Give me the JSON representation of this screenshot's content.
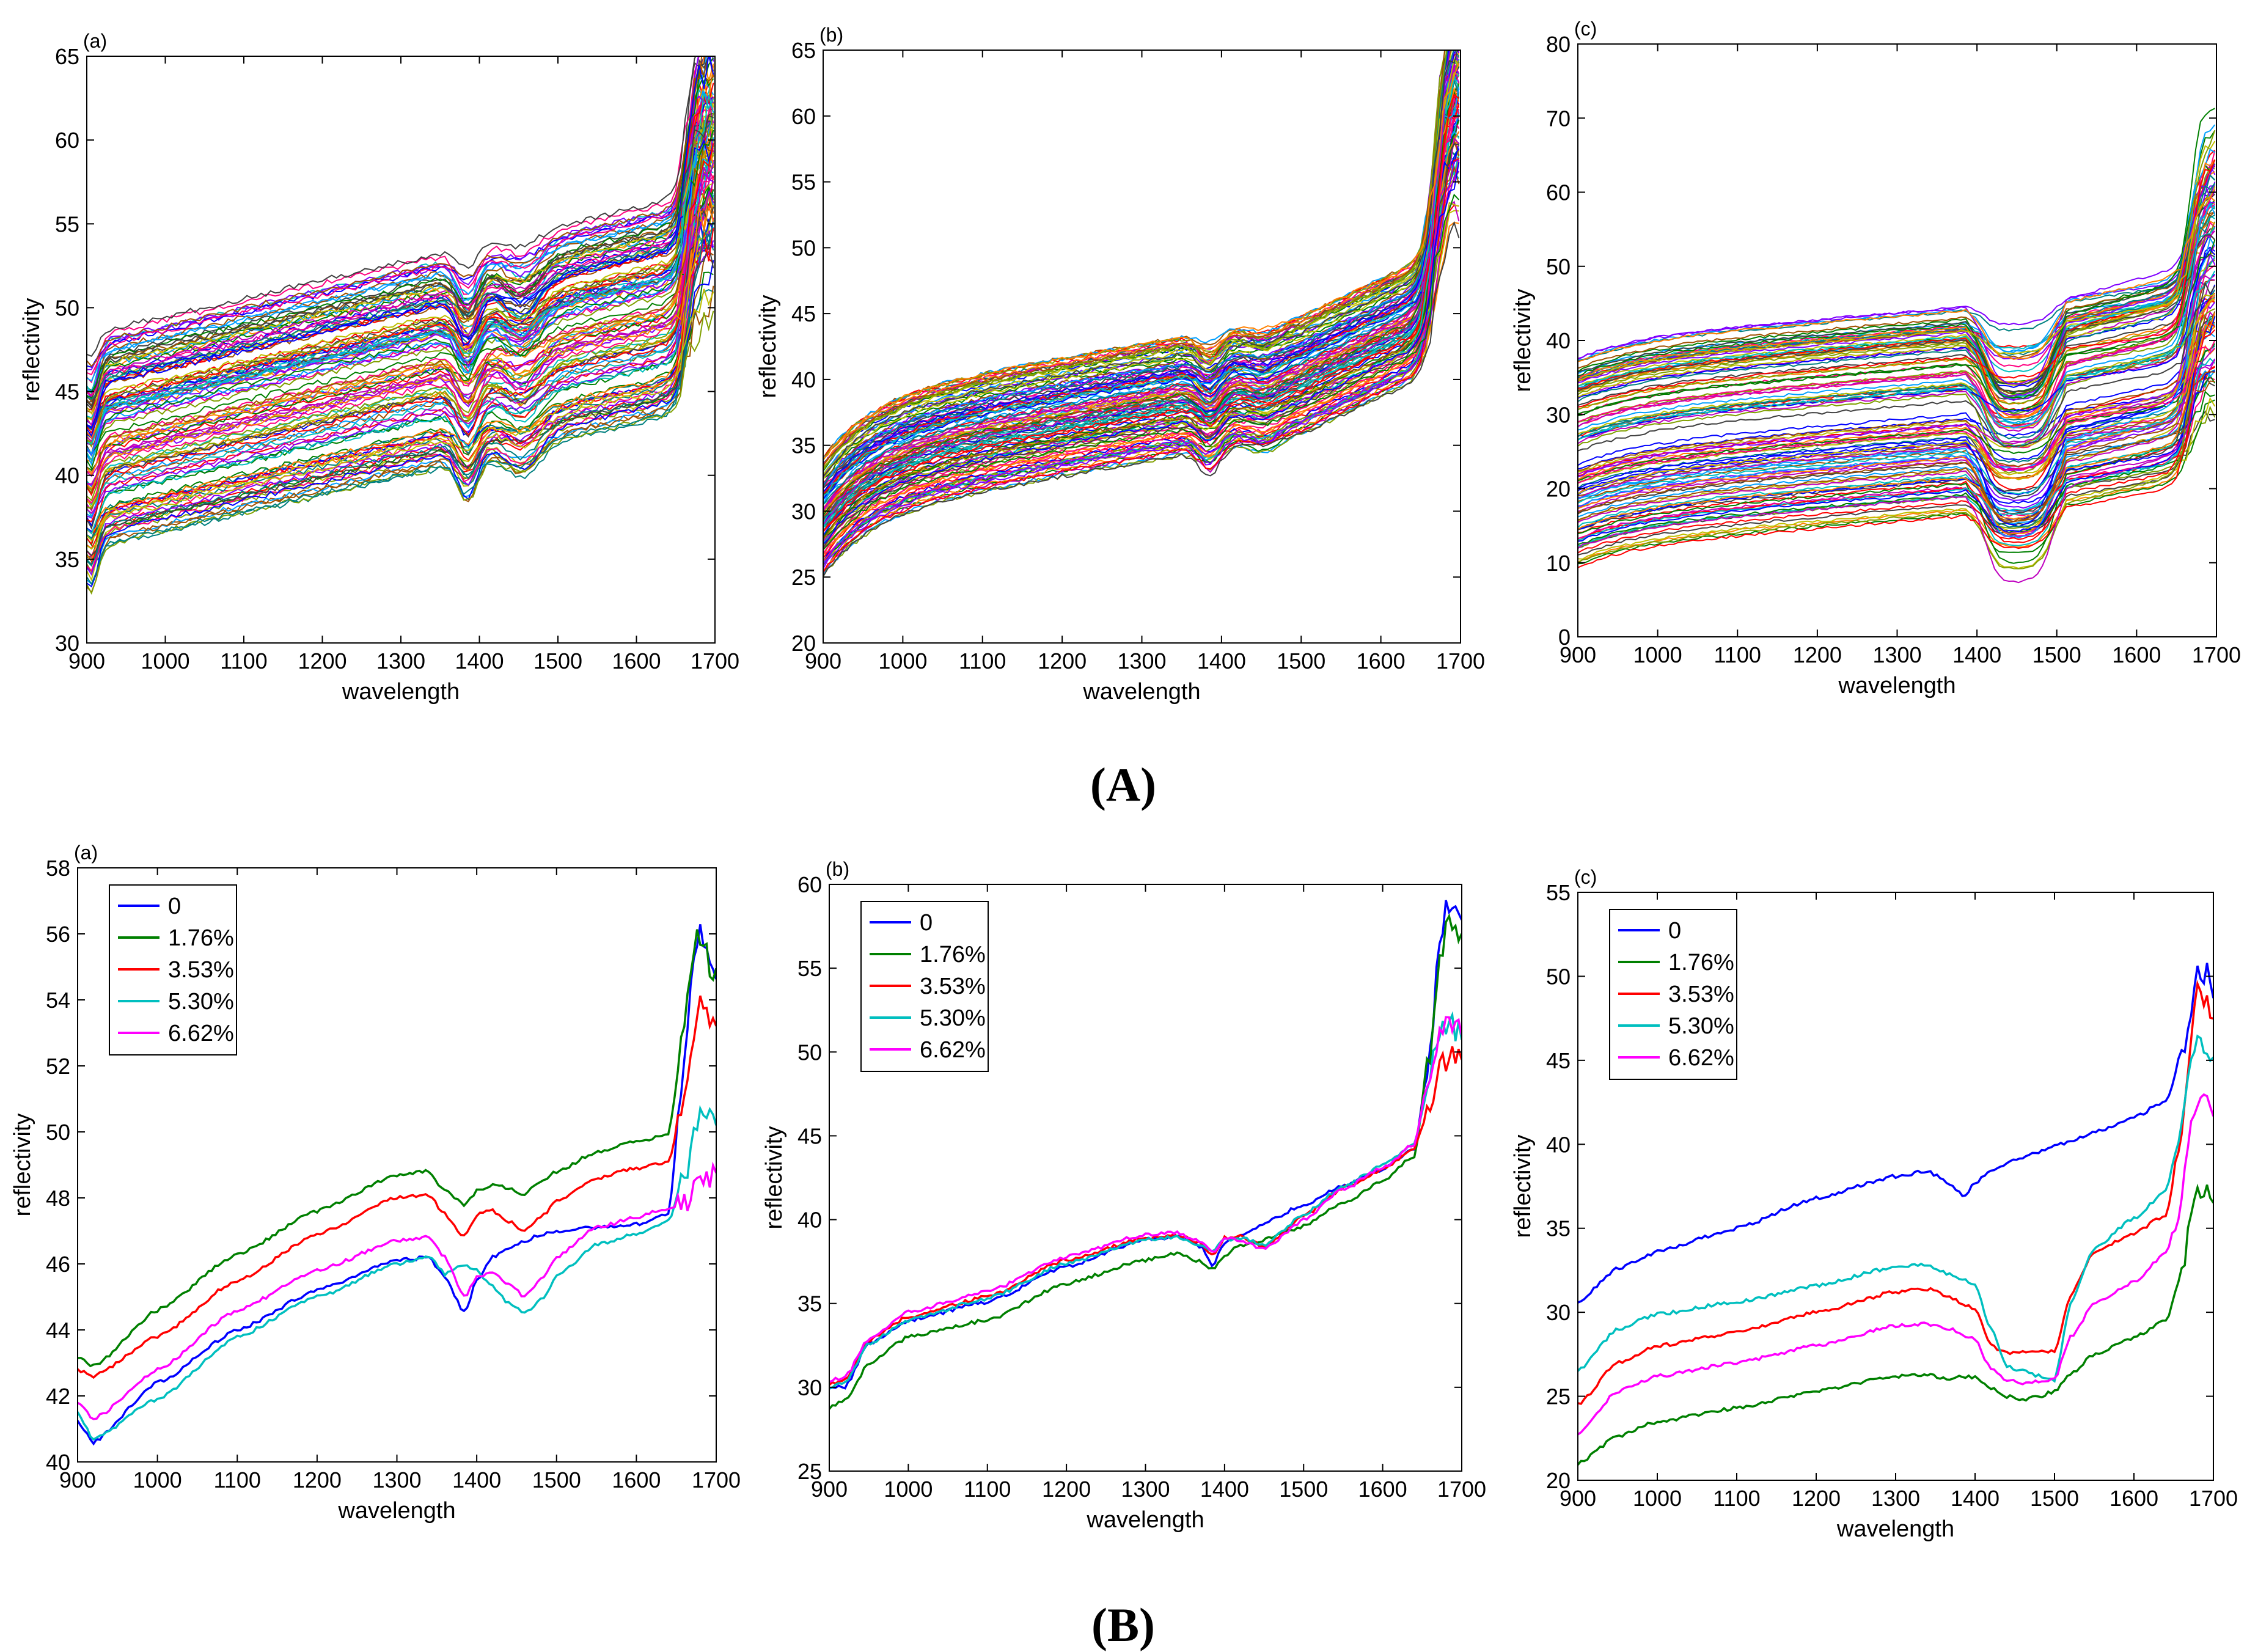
{
  "group_labels": {
    "A": "(A)",
    "B": "(B)"
  },
  "legend_labels": [
    "0",
    "1.76%",
    "3.53%",
    "5.30%",
    "6.62%"
  ],
  "series_colors": [
    "#0000ff",
    "#008000",
    "#ff0000",
    "#00bfbf",
    "#ff00ff"
  ],
  "chart_data": [
    {
      "id": "A-a",
      "group": "A",
      "tag": "(a)",
      "type": "line",
      "xlabel": "wavelength",
      "ylabel": "reflectivity",
      "xlim": [
        900,
        1700
      ],
      "ylim": [
        30,
        65
      ],
      "xticks": [
        900,
        1000,
        1100,
        1200,
        1300,
        1400,
        1500,
        1600,
        1700
      ],
      "yticks": [
        30,
        35,
        40,
        45,
        50,
        55,
        60,
        65
      ],
      "legend": false,
      "many_series": {
        "count": 120,
        "start_range": [
          35.5,
          48.5
        ],
        "note": "dense bundle of individual sample spectra"
      }
    },
    {
      "id": "A-b",
      "group": "A",
      "tag": "(b)",
      "type": "line",
      "xlabel": "wavelength",
      "ylabel": "reflectivity",
      "xlim": [
        900,
        1700
      ],
      "ylim": [
        20,
        65
      ],
      "xticks": [
        900,
        1000,
        1100,
        1200,
        1300,
        1400,
        1500,
        1600,
        1700
      ],
      "yticks": [
        20,
        25,
        30,
        35,
        40,
        45,
        50,
        55,
        60,
        65
      ],
      "legend": false,
      "many_series": {
        "count": 120,
        "start_range": [
          25,
          34
        ],
        "note": "dense bundle of individual sample spectra"
      }
    },
    {
      "id": "A-c",
      "group": "A",
      "tag": "(c)",
      "type": "line",
      "xlabel": "wavelength",
      "ylabel": "reflectivity",
      "xlim": [
        900,
        1700
      ],
      "ylim": [
        0,
        80
      ],
      "xticks": [
        900,
        1000,
        1100,
        1200,
        1300,
        1400,
        1500,
        1600,
        1700
      ],
      "yticks": [
        0,
        10,
        20,
        30,
        40,
        50,
        60,
        70,
        80
      ],
      "legend": false,
      "many_series": {
        "count": 120,
        "start_range": [
          8,
          38
        ],
        "note": "dense bundle of individual sample spectra"
      }
    },
    {
      "id": "B-a",
      "group": "B",
      "tag": "(a)",
      "type": "line",
      "xlabel": "wavelength",
      "ylabel": "reflectivity",
      "xlim": [
        900,
        1700
      ],
      "ylim": [
        40,
        58
      ],
      "xticks": [
        900,
        1000,
        1100,
        1200,
        1300,
        1400,
        1500,
        1600,
        1700
      ],
      "yticks": [
        40,
        42,
        44,
        46,
        48,
        50,
        52,
        54,
        56,
        58
      ],
      "legend": true,
      "x": [
        900,
        920,
        1000,
        1100,
        1200,
        1300,
        1340,
        1360,
        1385,
        1400,
        1420,
        1440,
        1460,
        1480,
        1500,
        1550,
        1600,
        1640,
        1660,
        1670,
        1680,
        1690,
        1700
      ],
      "series": [
        {
          "name": "0",
          "values": [
            41.2,
            40.6,
            42.4,
            44.0,
            45.2,
            46.1,
            46.2,
            45.6,
            44.5,
            45.5,
            46.2,
            46.5,
            46.7,
            46.9,
            47.0,
            47.1,
            47.2,
            47.5,
            52.0,
            55.0,
            56.2,
            55.5,
            54.5
          ]
        },
        {
          "name": "1.76%",
          "values": [
            43.2,
            42.9,
            44.6,
            46.3,
            47.6,
            48.7,
            48.8,
            48.2,
            47.8,
            48.2,
            48.4,
            48.3,
            48.1,
            48.5,
            48.8,
            49.4,
            49.7,
            49.9,
            53.0,
            55.5,
            56.0,
            55.2,
            54.6
          ]
        },
        {
          "name": "3.53%",
          "values": [
            42.8,
            42.6,
            43.8,
            45.5,
            46.9,
            48.0,
            48.1,
            47.5,
            46.8,
            47.5,
            47.6,
            47.3,
            47.0,
            47.4,
            47.9,
            48.6,
            48.9,
            49.1,
            51.0,
            52.8,
            53.9,
            53.6,
            53.2
          ]
        },
        {
          "name": "5.30%",
          "values": [
            41.5,
            40.7,
            41.9,
            43.8,
            45.0,
            46.0,
            46.2,
            45.7,
            46.0,
            45.8,
            45.3,
            44.8,
            44.5,
            44.9,
            45.6,
            46.6,
            46.9,
            47.3,
            48.5,
            49.6,
            50.6,
            50.3,
            50.2
          ]
        },
        {
          "name": "6.62%",
          "values": [
            41.8,
            41.3,
            42.8,
            44.6,
            45.8,
            46.7,
            46.8,
            46.2,
            45.0,
            45.6,
            45.7,
            45.4,
            45.0,
            45.5,
            46.2,
            47.1,
            47.4,
            47.7,
            47.8,
            48.2,
            48.7,
            48.6,
            48.9
          ]
        }
      ]
    },
    {
      "id": "B-b",
      "group": "B",
      "tag": "(b)",
      "type": "line",
      "xlabel": "wavelength",
      "ylabel": "reflectivity",
      "xlim": [
        900,
        1700
      ],
      "ylim": [
        25,
        60
      ],
      "xticks": [
        900,
        1000,
        1100,
        1200,
        1300,
        1400,
        1500,
        1600,
        1700
      ],
      "yticks": [
        25,
        30,
        35,
        40,
        45,
        50,
        55,
        60
      ],
      "legend": true,
      "x": [
        900,
        920,
        950,
        1000,
        1100,
        1200,
        1300,
        1340,
        1370,
        1385,
        1400,
        1420,
        1450,
        1500,
        1550,
        1600,
        1640,
        1660,
        1670,
        1680,
        1690,
        1700
      ],
      "series": [
        {
          "name": "0",
          "values": [
            30.0,
            30.0,
            32.6,
            34.0,
            35.1,
            37.2,
            38.8,
            39.0,
            38.4,
            37.3,
            38.6,
            39.0,
            39.8,
            40.9,
            42.0,
            43.0,
            44.2,
            50.0,
            55.5,
            58.5,
            58.8,
            58.5
          ]
        },
        {
          "name": "1.76%",
          "values": [
            28.8,
            29.2,
            31.4,
            33.0,
            34.0,
            36.2,
            37.6,
            38.0,
            37.5,
            37.0,
            37.8,
            38.5,
            38.8,
            39.6,
            41.0,
            42.3,
            43.8,
            50.0,
            55.0,
            57.3,
            57.5,
            56.5
          ]
        },
        {
          "name": "3.53%",
          "values": [
            30.2,
            30.4,
            32.8,
            34.2,
            35.4,
            37.6,
            38.9,
            39.1,
            38.6,
            37.8,
            38.9,
            39.0,
            38.4,
            40.2,
            41.9,
            43.0,
            44.3,
            47.0,
            48.8,
            49.5,
            49.7,
            49.4
          ]
        },
        {
          "name": "5.30%",
          "values": [
            30.0,
            30.3,
            32.6,
            34.0,
            35.3,
            37.4,
            38.8,
            39.0,
            38.5,
            38.2,
            38.8,
            38.9,
            38.5,
            40.3,
            42.0,
            43.2,
            44.6,
            48.5,
            50.8,
            51.3,
            51.5,
            51.0
          ]
        },
        {
          "name": "6.62%",
          "values": [
            30.4,
            30.6,
            32.9,
            34.5,
            35.7,
            37.8,
            39.1,
            39.2,
            38.7,
            38.0,
            38.9,
            38.8,
            38.2,
            40.0,
            41.8,
            43.1,
            44.5,
            48.8,
            50.9,
            51.5,
            51.8,
            51.4
          ]
        }
      ]
    },
    {
      "id": "B-c",
      "group": "B",
      "tag": "(c)",
      "type": "line",
      "xlabel": "wavelength",
      "ylabel": "reflectivity",
      "xlim": [
        900,
        1700
      ],
      "ylim": [
        20,
        55
      ],
      "xticks": [
        900,
        1000,
        1100,
        1200,
        1300,
        1400,
        1500,
        1600,
        1700
      ],
      "yticks": [
        20,
        25,
        30,
        35,
        40,
        45,
        50,
        55
      ],
      "legend": true,
      "x": [
        900,
        950,
        1000,
        1100,
        1200,
        1300,
        1340,
        1370,
        1385,
        1400,
        1420,
        1440,
        1460,
        1480,
        1500,
        1520,
        1550,
        1600,
        1640,
        1660,
        1670,
        1680,
        1690,
        1700
      ],
      "series": [
        {
          "name": "0",
          "values": [
            30.6,
            32.6,
            33.6,
            35.0,
            36.8,
            38.1,
            38.4,
            37.6,
            36.9,
            37.7,
            38.4,
            38.9,
            39.2,
            39.5,
            39.9,
            40.2,
            40.7,
            41.6,
            42.6,
            45.0,
            48.0,
            50.5,
            50.2,
            49.0
          ]
        },
        {
          "name": "1.76%",
          "values": [
            21.0,
            22.6,
            23.5,
            24.3,
            25.3,
            26.2,
            26.3,
            26.0,
            26.2,
            26.1,
            25.5,
            25.0,
            24.8,
            25.0,
            25.3,
            26.3,
            27.5,
            28.5,
            29.5,
            32.0,
            35.5,
            37.7,
            37.0,
            36.0
          ]
        },
        {
          "name": "3.53%",
          "values": [
            24.5,
            27.0,
            28.0,
            28.8,
            30.0,
            31.2,
            31.4,
            30.9,
            30.5,
            30.2,
            28.0,
            27.6,
            27.6,
            27.6,
            27.7,
            31.0,
            33.6,
            34.7,
            35.8,
            40.0,
            45.5,
            49.2,
            48.5,
            47.0
          ]
        },
        {
          "name": "5.30%",
          "values": [
            26.5,
            29.0,
            29.9,
            30.6,
            31.6,
            32.7,
            32.8,
            32.2,
            31.9,
            31.7,
            29.0,
            26.8,
            26.5,
            26.2,
            26.0,
            30.5,
            33.8,
            35.6,
            37.2,
            41.0,
            44.5,
            46.5,
            45.8,
            44.6
          ]
        },
        {
          "name": "6.62%",
          "values": [
            22.8,
            25.3,
            26.2,
            27.0,
            28.0,
            29.2,
            29.3,
            29.0,
            28.6,
            28.4,
            26.6,
            26.0,
            25.8,
            25.9,
            26.0,
            28.5,
            30.5,
            31.8,
            33.5,
            36.5,
            40.5,
            42.8,
            42.3,
            41.0
          ]
        }
      ]
    }
  ]
}
